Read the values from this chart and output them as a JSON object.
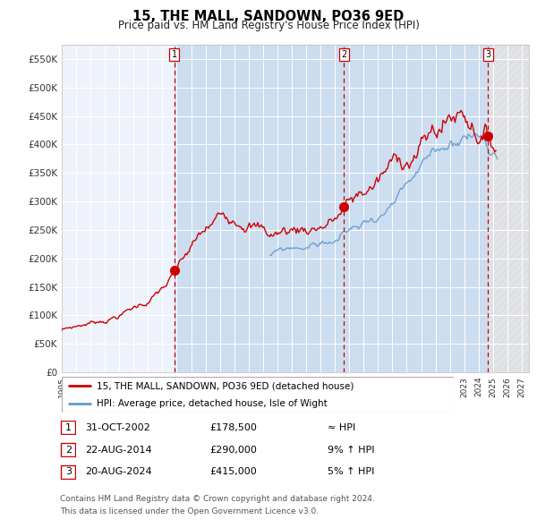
{
  "title": "15, THE MALL, SANDOWN, PO36 9ED",
  "subtitle": "Price paid vs. HM Land Registry's House Price Index (HPI)",
  "ylim": [
    0,
    575000
  ],
  "yticks": [
    0,
    50000,
    100000,
    150000,
    200000,
    250000,
    300000,
    350000,
    400000,
    450000,
    500000,
    550000
  ],
  "ytick_labels": [
    "£0",
    "£50K",
    "£100K",
    "£150K",
    "£200K",
    "£250K",
    "£300K",
    "£350K",
    "£400K",
    "£450K",
    "£500K",
    "£550K"
  ],
  "xlim_start": 1995.0,
  "xlim_end": 2027.5,
  "xtick_years": [
    1995,
    1996,
    1997,
    1998,
    1999,
    2000,
    2001,
    2002,
    2003,
    2004,
    2005,
    2006,
    2007,
    2008,
    2009,
    2010,
    2011,
    2012,
    2013,
    2014,
    2015,
    2016,
    2017,
    2018,
    2019,
    2020,
    2021,
    2022,
    2023,
    2024,
    2025,
    2026,
    2027
  ],
  "sale1_x": 2002.83,
  "sale1_y": 178500,
  "sale2_x": 2014.64,
  "sale2_y": 290000,
  "sale3_x": 2024.64,
  "sale3_y": 415000,
  "red_line_color": "#cc0000",
  "blue_line_color": "#6699cc",
  "background_color": "#ffffff",
  "plot_bg_color": "#eef2fb",
  "shade_color": "#ccddf0",
  "legend_label1": "15, THE MALL, SANDOWN, PO36 9ED (detached house)",
  "legend_label2": "HPI: Average price, detached house, Isle of Wight",
  "table_row1": [
    "1",
    "31-OCT-2002",
    "£178,500",
    "≈ HPI"
  ],
  "table_row2": [
    "2",
    "22-AUG-2014",
    "£290,000",
    "9% ↑ HPI"
  ],
  "table_row3": [
    "3",
    "20-AUG-2024",
    "£415,000",
    "5% ↑ HPI"
  ],
  "footer": "Contains HM Land Registry data © Crown copyright and database right 2024.\nThis data is licensed under the Open Government Licence v3.0."
}
